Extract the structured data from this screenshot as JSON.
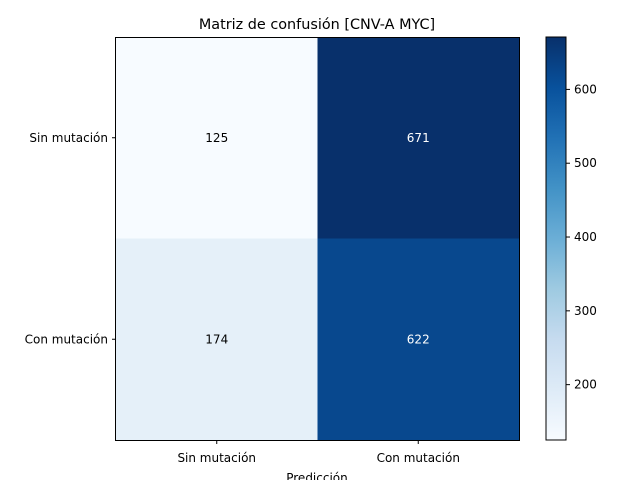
{
  "chart_data": {
    "type": "heatmap",
    "title": "Matriz de confusión [CNV-A MYC]",
    "xlabel": "Predicción",
    "ylabel": "",
    "x_categories": [
      "Sin mutación",
      "Con mutación"
    ],
    "y_categories": [
      "Sin mutación",
      "Con mutación"
    ],
    "values": [
      [
        125,
        671
      ],
      [
        174,
        622
      ]
    ],
    "colorbar": {
      "cmap": "Blues",
      "vmin": 125,
      "vmax": 671,
      "ticks": [
        200,
        300,
        400,
        500,
        600
      ]
    }
  }
}
